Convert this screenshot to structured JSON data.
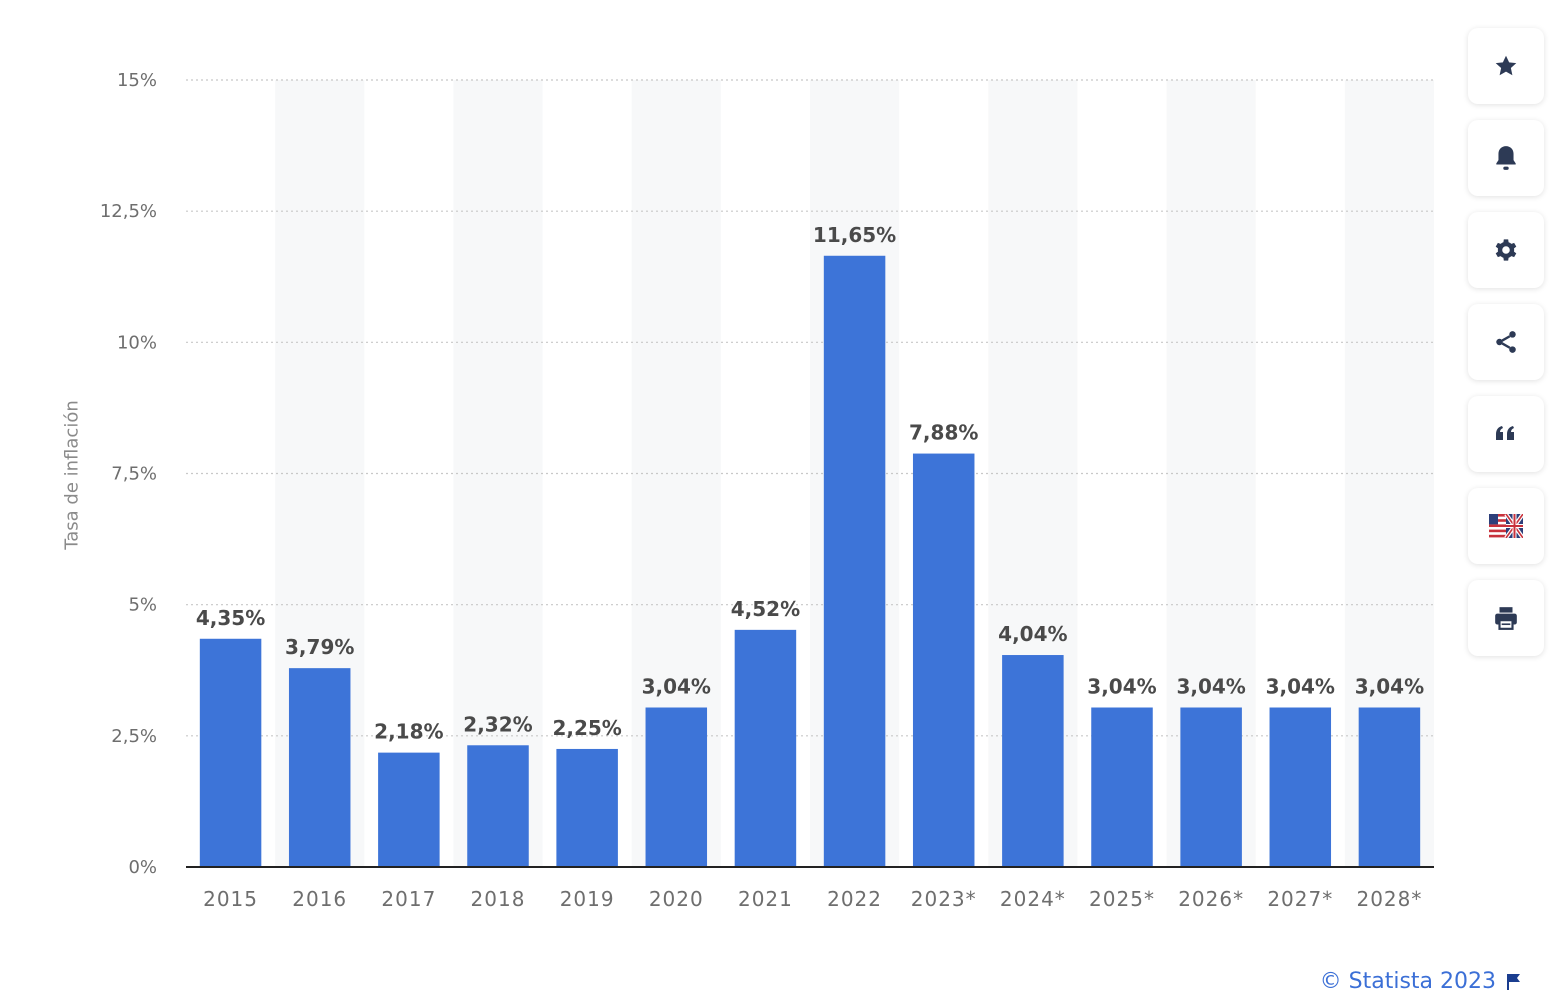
{
  "chart_data": {
    "type": "bar",
    "ylabel": "Tasa de inflación",
    "xlabel": "",
    "ylim": [
      0,
      15
    ],
    "yticks": [
      0,
      2.5,
      5,
      7.5,
      10,
      12.5,
      15
    ],
    "ytick_labels": [
      "0%",
      "2,5%",
      "5%",
      "7,5%",
      "10%",
      "12,5%",
      "15%"
    ],
    "categories": [
      "2015",
      "2016",
      "2017",
      "2018",
      "2019",
      "2020",
      "2021",
      "2022",
      "2023*",
      "2024*",
      "2025*",
      "2026*",
      "2027*",
      "2028*"
    ],
    "values": [
      4.35,
      3.79,
      2.18,
      2.32,
      2.25,
      3.04,
      4.52,
      11.65,
      7.88,
      4.04,
      3.04,
      3.04,
      3.04,
      3.04
    ],
    "value_labels": [
      "4,35%",
      "3,79%",
      "2,18%",
      "2,32%",
      "2,25%",
      "3,04%",
      "4,52%",
      "11,65%",
      "7,88%",
      "4,04%",
      "3,04%",
      "3,04%",
      "3,04%",
      "3,04%"
    ],
    "grid": true,
    "colors": {
      "bar": "#3d74d8",
      "grid": "#c8c8c8",
      "band": "#f7f8f9",
      "tick_text": "#6e6e6e",
      "value_text": "#4a4a4a"
    }
  },
  "sidebar": {
    "buttons": [
      {
        "icon": "star-icon"
      },
      {
        "icon": "bell-icon"
      },
      {
        "icon": "gear-icon"
      },
      {
        "icon": "share-icon"
      },
      {
        "icon": "quote-icon"
      },
      {
        "icon": "flag-us-uk-icon"
      },
      {
        "icon": "print-icon"
      }
    ]
  },
  "footer": {
    "credit": "© Statista 2023"
  }
}
